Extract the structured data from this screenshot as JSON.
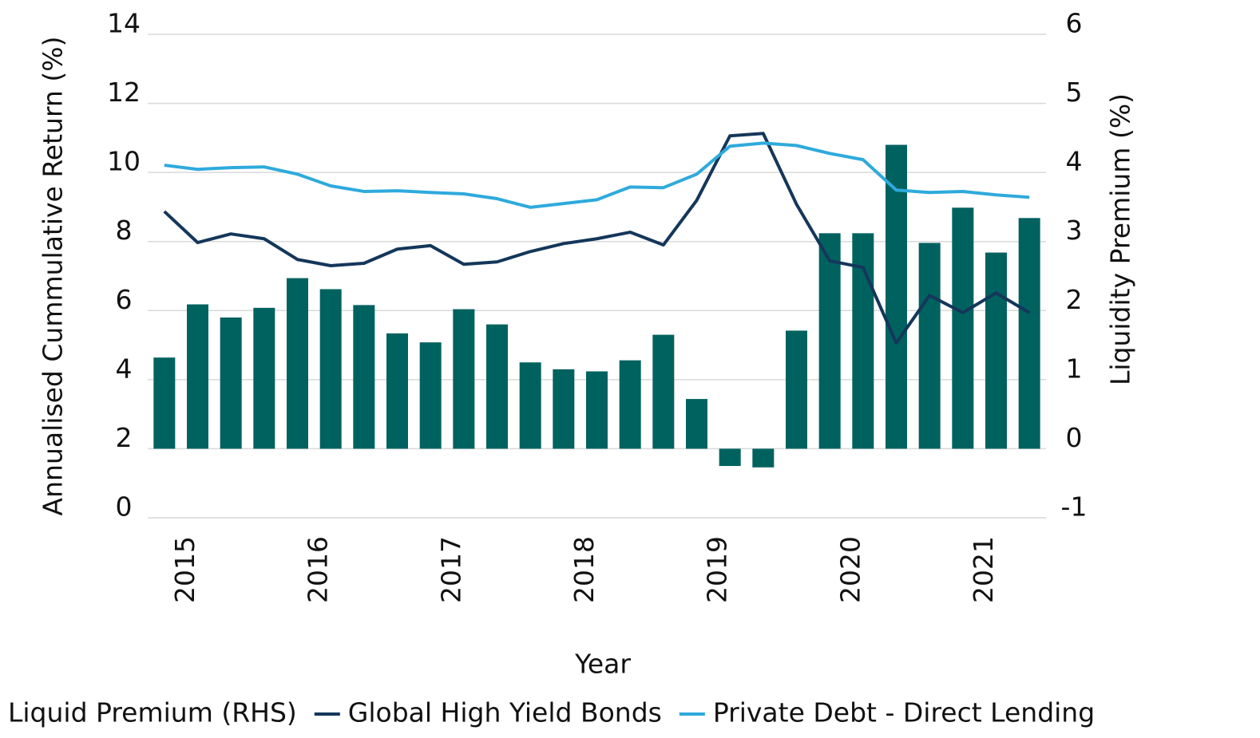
{
  "chart_data": {
    "type": "bar_line",
    "x_label": "Year",
    "y_label": "Annualised Cummulative Return (%)",
    "y2_label": "Liquidity Premium (%)",
    "categories": [
      null,
      "2015",
      null,
      null,
      null,
      "2016",
      null,
      null,
      null,
      "2017",
      null,
      null,
      null,
      "2018",
      null,
      null,
      null,
      "2019",
      null,
      null,
      null,
      "2020",
      null,
      null,
      null,
      "2021",
      null
    ],
    "ylim": [
      0,
      14
    ],
    "yticks": [
      0,
      2,
      4,
      6,
      8,
      10,
      12,
      14
    ],
    "y2lim": [
      -1,
      6
    ],
    "y2ticks": [
      -1,
      0,
      1,
      2,
      3,
      4,
      5,
      6
    ],
    "grid": true,
    "legend": "bottom",
    "series": [
      {
        "name": "Liquid Premium (RHS)",
        "type": "bar",
        "axis": "y2",
        "color": "#00625f",
        "values": [
          1.32,
          2.09,
          1.9,
          2.04,
          2.47,
          2.31,
          2.08,
          1.67,
          1.54,
          2.02,
          1.8,
          1.25,
          1.15,
          1.12,
          1.28,
          1.65,
          0.72,
          -0.25,
          -0.27,
          1.71,
          3.12,
          3.12,
          4.4,
          2.98,
          3.49,
          2.84,
          3.34
        ]
      },
      {
        "name": "Global High Yield Bonds",
        "type": "line",
        "axis": "y",
        "color": "#14375a",
        "values": [
          8.87,
          7.97,
          8.22,
          8.08,
          7.48,
          7.3,
          7.37,
          7.78,
          7.88,
          7.34,
          7.41,
          7.71,
          7.94,
          8.08,
          8.27,
          7.9,
          9.19,
          11.06,
          11.13,
          9.08,
          7.44,
          7.25,
          5.06,
          6.44,
          5.94,
          6.51,
          5.94
        ]
      },
      {
        "name": "Private Debt - Direct Lending",
        "type": "line",
        "axis": "y",
        "color": "#2eaadc",
        "values": [
          10.21,
          10.09,
          10.14,
          10.16,
          9.95,
          9.61,
          9.45,
          9.47,
          9.42,
          9.38,
          9.24,
          8.99,
          9.1,
          9.21,
          9.58,
          9.56,
          9.95,
          10.76,
          10.85,
          10.78,
          10.55,
          10.37,
          9.49,
          9.42,
          9.45,
          9.35,
          9.28
        ]
      }
    ]
  }
}
